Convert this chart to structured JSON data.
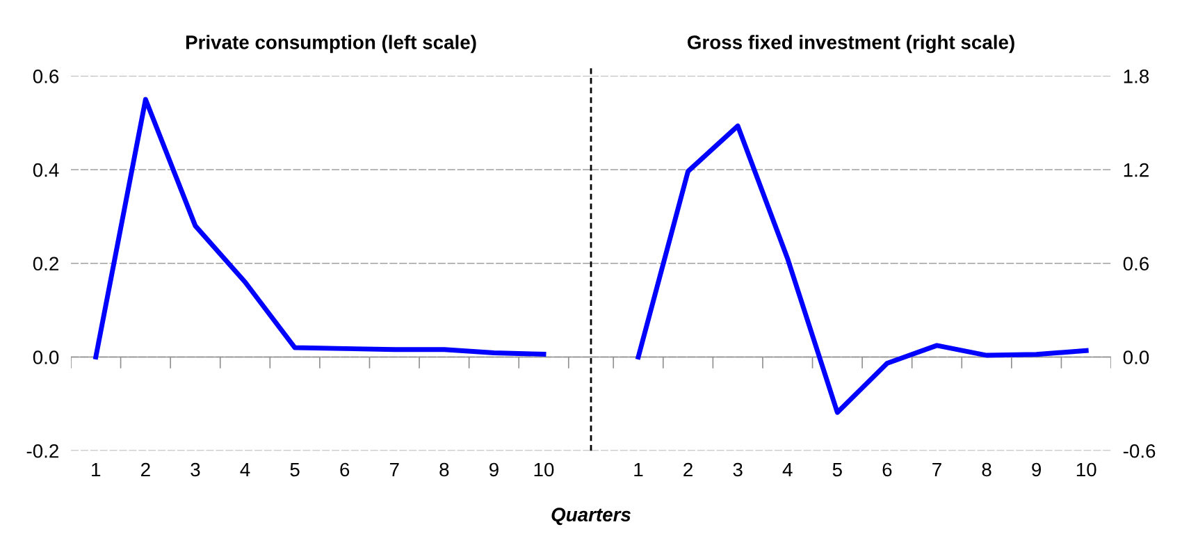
{
  "chart_data": [
    {
      "type": "line",
      "title": "Private consumption (left scale)",
      "xlabel": "Quarters",
      "categories": [
        "1",
        "2",
        "3",
        "4",
        "5",
        "6",
        "7",
        "8",
        "9",
        "10"
      ],
      "ylim": [
        -0.2,
        0.6
      ],
      "yticks": [
        {
          "value": -0.2,
          "label": "-0.2"
        },
        {
          "value": 0.0,
          "label": "0.0"
        },
        0.2,
        0.4,
        0.6
      ],
      "grid": "y",
      "legend": false,
      "marker": "none",
      "line_style": "solid",
      "series": [
        {
          "color": "#0000ff",
          "values": [
            0,
            0.55,
            0.28,
            0.16,
            0.02,
            0.018,
            0.016,
            0.016,
            0.009,
            0.006
          ]
        }
      ]
    },
    {
      "type": "line",
      "title": "Gross fixed investment (right scale)",
      "categories": [
        "1",
        "2",
        "3",
        "4",
        "5",
        "6",
        "7",
        "8",
        "9",
        "10"
      ],
      "y2lim": [
        -0.6,
        1.8
      ],
      "y2ticks": [
        {
          "value": -0.6,
          "label": "-0.6"
        },
        {
          "value": 0.0,
          "label": "0.0"
        },
        0.6,
        1.2,
        1.8
      ],
      "grid": "y",
      "legend": false,
      "marker": "none",
      "line_style": "solid",
      "series": [
        {
          "color": "#0000ff",
          "axis": "y2",
          "values": [
            0,
            1.19,
            1.48,
            0.63,
            -0.355,
            -0.04,
            0.074,
            0.011,
            0.017,
            0.041
          ]
        }
      ]
    }
  ]
}
